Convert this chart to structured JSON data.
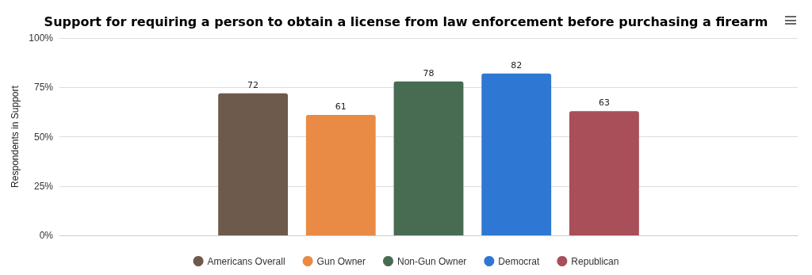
{
  "chart_data": {
    "type": "bar",
    "title": "Support for requiring a person to obtain a license from law enforcement before purchasing a firearm",
    "ylabel": "Respondents in Support",
    "categories": [
      null
    ],
    "series": [
      {
        "name": "Americans Overall",
        "color": "#6e594d",
        "values": [
          72
        ]
      },
      {
        "name": "Gun Owner",
        "color": "#e98b45",
        "values": [
          61
        ]
      },
      {
        "name": "Non-Gun Owner",
        "color": "#486c51",
        "values": [
          78
        ]
      },
      {
        "name": "Democrat",
        "color": "#2e78d3",
        "values": [
          82
        ]
      },
      {
        "name": "Republican",
        "color": "#a84f59",
        "values": [
          63
        ]
      }
    ],
    "ylim": [
      0,
      100
    ],
    "yticks": [
      {
        "value": 0,
        "label": "0%"
      },
      {
        "value": 25,
        "label": "25%"
      },
      {
        "value": 50,
        "label": "50%"
      },
      {
        "value": 75,
        "label": "75%"
      },
      {
        "value": 100,
        "label": "100%"
      }
    ],
    "grid": "y",
    "legend": "bottom",
    "data_labels": true
  }
}
